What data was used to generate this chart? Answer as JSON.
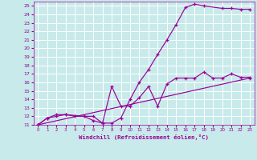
{
  "background_color": "#c8eaea",
  "grid_color": "#ffffff",
  "line_color": "#990099",
  "x_label": "Windchill (Refroidissement éolien,°C)",
  "xlim": [
    -0.5,
    23.5
  ],
  "ylim": [
    11,
    25.5
  ],
  "yticks": [
    11,
    12,
    13,
    14,
    15,
    16,
    17,
    18,
    19,
    20,
    21,
    22,
    23,
    24,
    25
  ],
  "xticks": [
    0,
    1,
    2,
    3,
    4,
    5,
    6,
    7,
    8,
    9,
    10,
    11,
    12,
    13,
    14,
    15,
    16,
    17,
    18,
    19,
    20,
    21,
    22,
    23
  ],
  "line1_x": [
    0,
    1,
    2,
    3,
    4,
    5,
    6,
    7,
    8,
    9,
    10,
    11,
    12,
    13,
    14,
    15,
    16,
    17,
    18,
    20,
    21,
    22,
    23
  ],
  "line1_y": [
    11.0,
    11.8,
    12.0,
    12.2,
    12.0,
    12.0,
    11.5,
    11.2,
    11.2,
    11.8,
    14.0,
    16.0,
    17.5,
    19.3,
    21.0,
    22.8,
    24.8,
    25.2,
    25.0,
    24.7,
    24.7,
    24.6,
    24.6
  ],
  "line2_x": [
    0,
    1,
    2,
    3,
    5,
    6,
    7,
    8,
    9,
    10,
    11,
    12,
    13,
    14,
    15,
    16,
    17,
    18,
    19,
    20,
    21,
    22,
    23
  ],
  "line2_y": [
    11.0,
    11.8,
    12.2,
    12.2,
    12.0,
    12.0,
    11.2,
    15.5,
    13.2,
    13.2,
    14.2,
    15.5,
    13.2,
    15.8,
    16.5,
    16.5,
    16.5,
    17.2,
    16.5,
    16.5,
    17.0,
    16.6,
    16.6
  ],
  "line3_x": [
    0,
    23
  ],
  "line3_y": [
    11.0,
    16.5
  ]
}
